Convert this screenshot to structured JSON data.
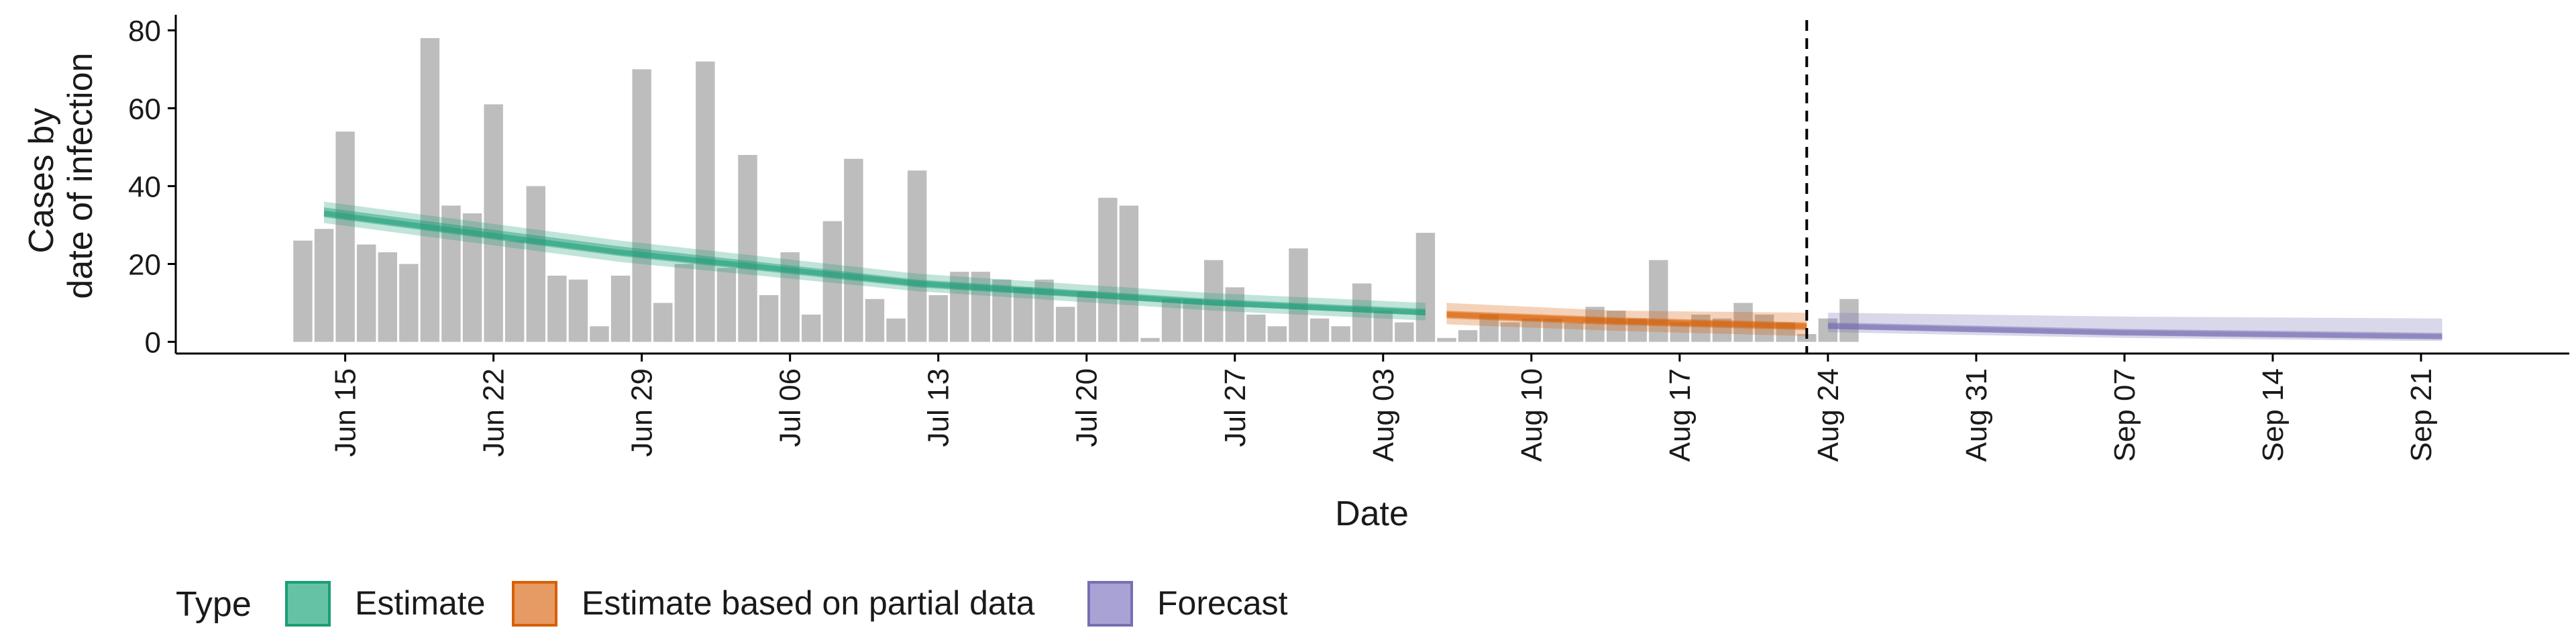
{
  "chart_data": {
    "type": "bar",
    "title": "",
    "xlabel": "Date",
    "ylabel": [
      "Cases by",
      "date of infection"
    ],
    "ylim": [
      -3,
      84
    ],
    "yticks": [
      0,
      20,
      40,
      60,
      80
    ],
    "xlim": [
      "2020-06-07",
      "2020-09-28"
    ],
    "xticks": [
      {
        "date": "2020-06-15",
        "label": "Jun 15"
      },
      {
        "date": "2020-06-22",
        "label": "Jun 22"
      },
      {
        "date": "2020-06-29",
        "label": "Jun 29"
      },
      {
        "date": "2020-07-06",
        "label": "Jul 06"
      },
      {
        "date": "2020-07-13",
        "label": "Jul 13"
      },
      {
        "date": "2020-07-20",
        "label": "Jul 20"
      },
      {
        "date": "2020-07-27",
        "label": "Jul 27"
      },
      {
        "date": "2020-08-03",
        "label": "Aug 03"
      },
      {
        "date": "2020-08-10",
        "label": "Aug 10"
      },
      {
        "date": "2020-08-17",
        "label": "Aug 17"
      },
      {
        "date": "2020-08-24",
        "label": "Aug 24"
      },
      {
        "date": "2020-08-31",
        "label": "Aug 31"
      },
      {
        "date": "2020-09-07",
        "label": "Sep 07"
      },
      {
        "date": "2020-09-14",
        "label": "Sep 14"
      },
      {
        "date": "2020-09-21",
        "label": "Sep 21"
      }
    ],
    "bars": {
      "start_date": "2020-06-13",
      "color": "#bdbdbd",
      "values": [
        26,
        29,
        54,
        25,
        23,
        20,
        78,
        35,
        33,
        61,
        26,
        40,
        17,
        16,
        4,
        17,
        70,
        10,
        20,
        72,
        19,
        48,
        12,
        23,
        7,
        31,
        47,
        11,
        6,
        44,
        12,
        18,
        18,
        16,
        14,
        16,
        9,
        13,
        37,
        35,
        1,
        11,
        11,
        21,
        14,
        7,
        4,
        24,
        6,
        4,
        15,
        8,
        5,
        28,
        1,
        3,
        7,
        5,
        6,
        6,
        5,
        9,
        8,
        6,
        21,
        5,
        7,
        6,
        10,
        7,
        5,
        2,
        6,
        11
      ]
    },
    "vline": {
      "date": "2020-08-23",
      "style": "dashed"
    },
    "legend": {
      "title": "Type",
      "position": "bottom",
      "entries": [
        {
          "label": "Estimate",
          "color": "#66c2a5",
          "border": "#1b9e77"
        },
        {
          "label": "Estimate based on partial data",
          "color": "#e69a64",
          "border": "#d95f02"
        },
        {
          "label": "Forecast",
          "color": "#a8a3d4",
          "border": "#7570b3"
        }
      ]
    },
    "series": [
      {
        "name": "Estimate",
        "color": "#1b9e77",
        "x": [
          "2020-06-14",
          "2020-06-28",
          "2020-07-12",
          "2020-07-26",
          "2020-08-05"
        ],
        "median": [
          33,
          23,
          15,
          10,
          7.5
        ],
        "lower_90": [
          30.5,
          20.5,
          13,
          8,
          5.5
        ],
        "upper_90": [
          36,
          26,
          17.5,
          12.5,
          10
        ],
        "lower_50": [
          32,
          22,
          14,
          9.3,
          6.8
        ],
        "upper_50": [
          34.5,
          24.5,
          16,
          11,
          8.5
        ]
      },
      {
        "name": "Estimate based on partial data",
        "color": "#d95f02",
        "x": [
          "2020-08-06",
          "2020-08-14",
          "2020-08-23"
        ],
        "median": [
          7,
          5.3,
          4
        ],
        "lower_90": [
          4.5,
          2.8,
          1.5
        ],
        "upper_90": [
          10,
          8,
          7.5
        ],
        "lower_50": [
          6,
          4.3,
          3
        ],
        "upper_50": [
          8,
          6.3,
          5
        ]
      },
      {
        "name": "Forecast",
        "color": "#7570b3",
        "x": [
          "2020-08-24",
          "2020-09-07",
          "2020-09-22"
        ],
        "median": [
          4,
          2.3,
          1.3
        ],
        "lower_90": [
          2.5,
          1,
          0.2
        ],
        "upper_90": [
          7.5,
          6.5,
          6
        ],
        "lower_50": [
          3.4,
          1.7,
          0.8
        ],
        "upper_50": [
          5,
          3.3,
          2.3
        ]
      }
    ]
  }
}
